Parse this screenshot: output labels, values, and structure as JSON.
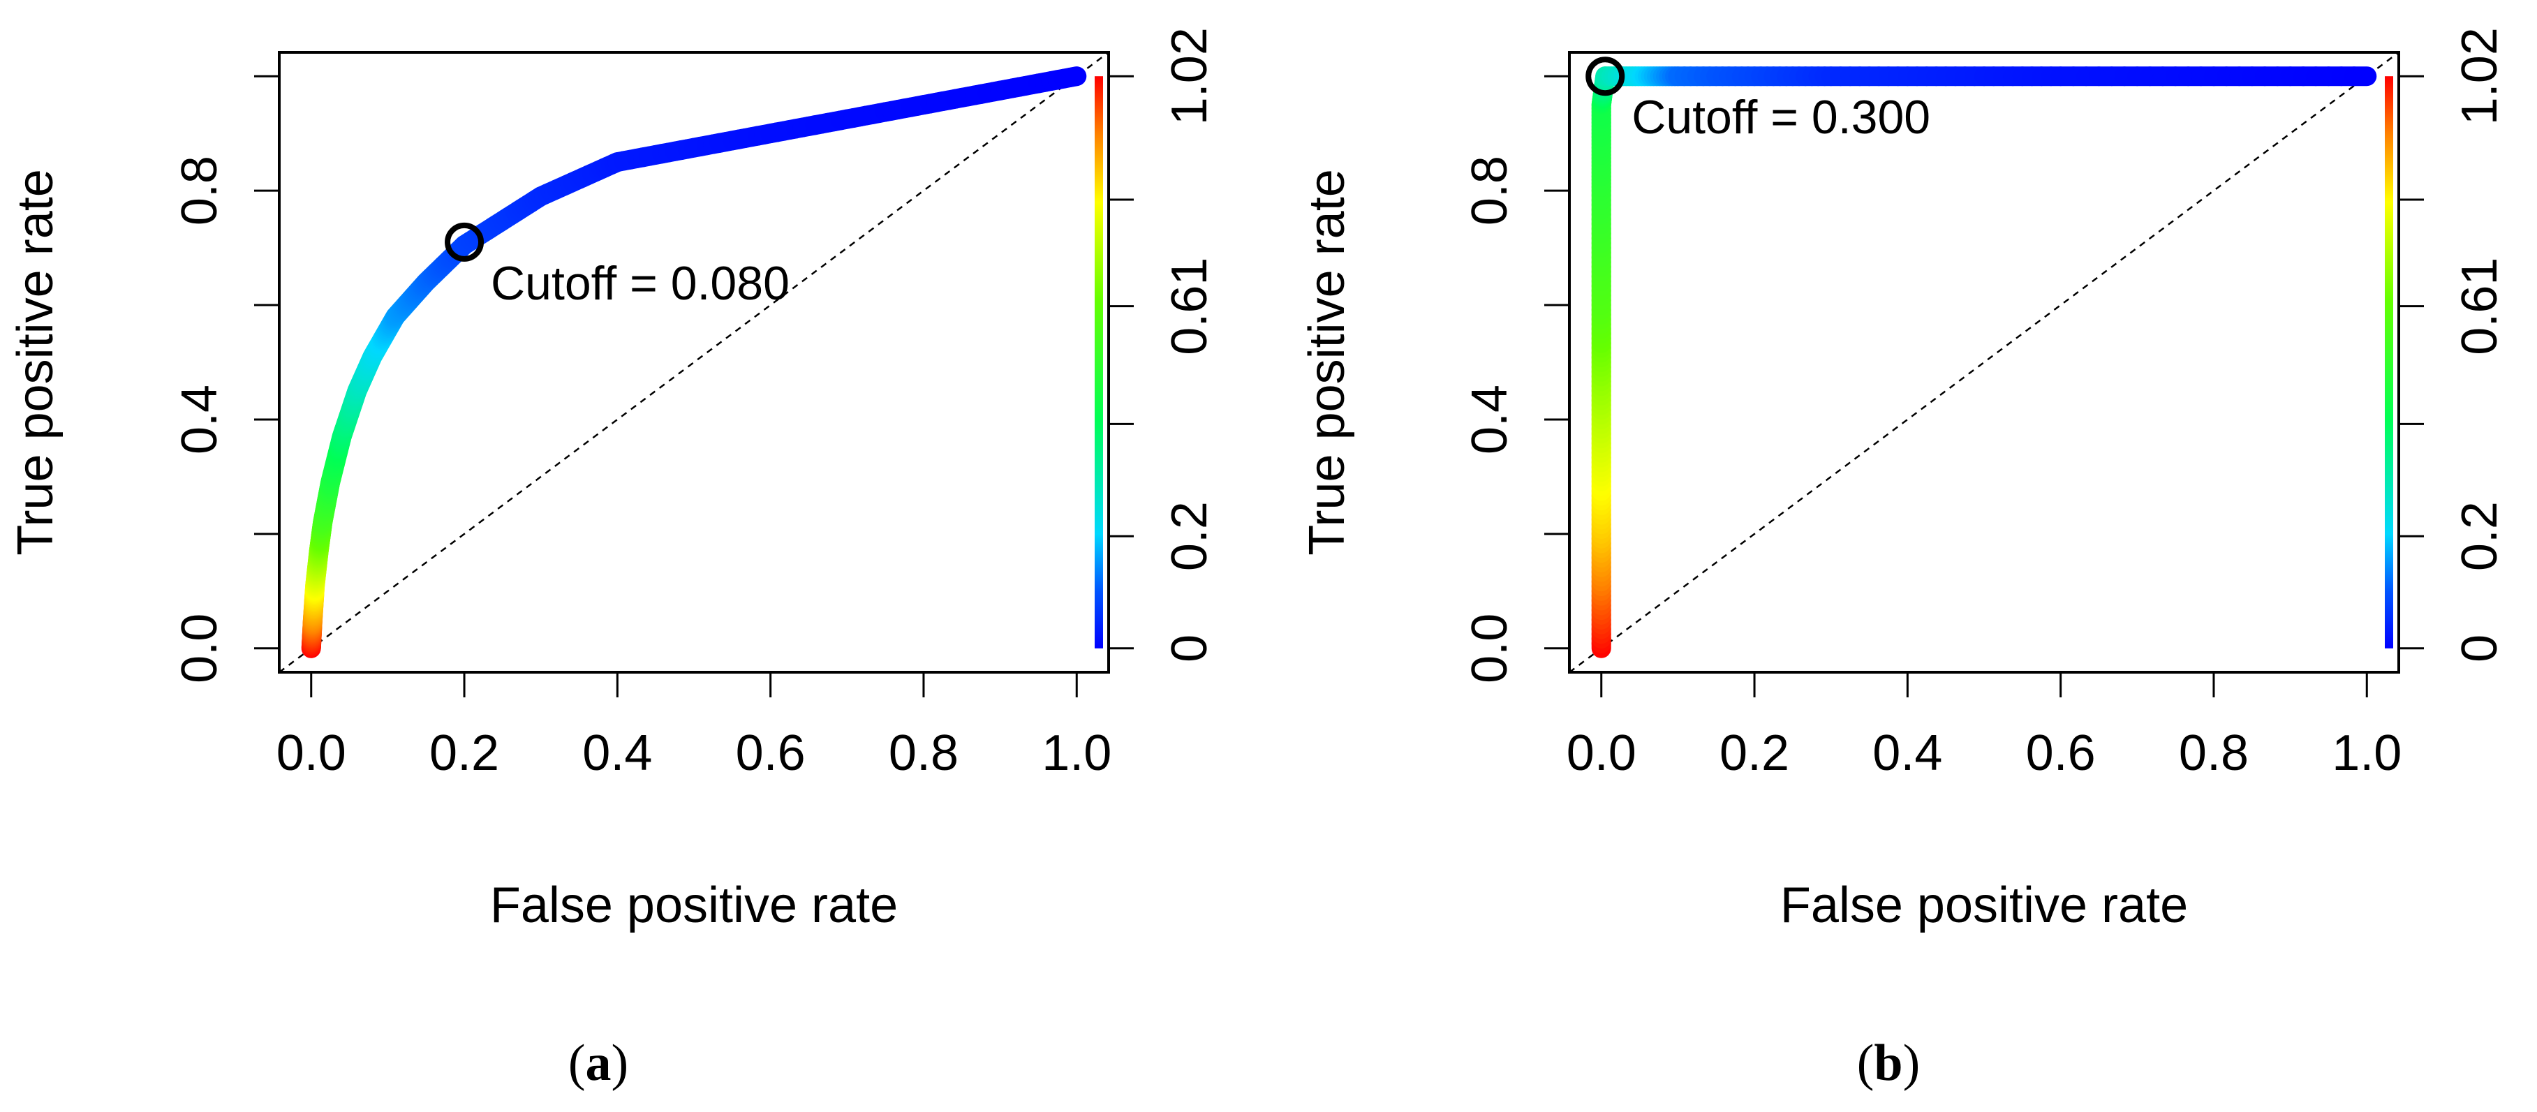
{
  "chart_data": [
    {
      "type": "line",
      "panel": "a",
      "caption_letter": "a",
      "caption_open": "(",
      "caption_close": ")",
      "xlabel": "False positive rate",
      "ylabel": "True positive rate",
      "xlim": [
        0,
        1
      ],
      "ylim": [
        0,
        1
      ],
      "x_ticks": [
        0,
        0.2,
        0.4,
        0.6,
        0.8,
        1.0
      ],
      "x_tick_labels": [
        "0.0",
        "0.2",
        "0.4",
        "0.6",
        "0.8",
        "1.0"
      ],
      "y_ticks": [
        0,
        0.2,
        0.4,
        0.6,
        0.8,
        1.0
      ],
      "y_tick_labels": [
        "0.0",
        "",
        "0.4",
        "",
        "0.8",
        ""
      ],
      "colorbar_ticks": [
        0,
        0.2,
        0.4,
        0.61,
        0.8,
        1.02
      ],
      "colorbar_tick_labels": [
        "0",
        "0.2",
        "",
        "0.61",
        "",
        "1.02"
      ],
      "colorbar_range": [
        0,
        1.02
      ],
      "diagonal": true,
      "roc_points": [
        {
          "fpr": 0.0,
          "tpr": 0.0,
          "cutoff": 1.02
        },
        {
          "fpr": 0.002,
          "tpr": 0.05,
          "cutoff": 0.9
        },
        {
          "fpr": 0.005,
          "tpr": 0.11,
          "cutoff": 0.78
        },
        {
          "fpr": 0.01,
          "tpr": 0.17,
          "cutoff": 0.66
        },
        {
          "fpr": 0.015,
          "tpr": 0.22,
          "cutoff": 0.56
        },
        {
          "fpr": 0.025,
          "tpr": 0.29,
          "cutoff": 0.47
        },
        {
          "fpr": 0.04,
          "tpr": 0.37,
          "cutoff": 0.38
        },
        {
          "fpr": 0.06,
          "tpr": 0.45,
          "cutoff": 0.29
        },
        {
          "fpr": 0.08,
          "tpr": 0.51,
          "cutoff": 0.23
        },
        {
          "fpr": 0.11,
          "tpr": 0.58,
          "cutoff": 0.16
        },
        {
          "fpr": 0.15,
          "tpr": 0.64,
          "cutoff": 0.12
        },
        {
          "fpr": 0.2,
          "tpr": 0.705,
          "cutoff": 0.08
        },
        {
          "fpr": 0.3,
          "tpr": 0.79,
          "cutoff": 0.05
        },
        {
          "fpr": 0.4,
          "tpr": 0.85,
          "cutoff": 0.03
        },
        {
          "fpr": 0.6,
          "tpr": 0.9,
          "cutoff": 0.015
        },
        {
          "fpr": 0.8,
          "tpr": 0.95,
          "cutoff": 0.007
        },
        {
          "fpr": 1.0,
          "tpr": 1.0,
          "cutoff": 0.0
        }
      ],
      "cutoff_marker": {
        "fpr": 0.2,
        "tpr": 0.71
      },
      "cutoff_label": "Cutoff = 0.080"
    },
    {
      "type": "line",
      "panel": "b",
      "caption_letter": "b",
      "caption_open": "(",
      "caption_close": ")",
      "xlabel": "False positive rate",
      "ylabel": "True positive rate",
      "xlim": [
        0,
        1
      ],
      "ylim": [
        0,
        1
      ],
      "x_ticks": [
        0,
        0.2,
        0.4,
        0.6,
        0.8,
        1.0
      ],
      "x_tick_labels": [
        "0.0",
        "0.2",
        "0.4",
        "0.6",
        "0.8",
        "1.0"
      ],
      "y_ticks": [
        0,
        0.2,
        0.4,
        0.6,
        0.8,
        1.0
      ],
      "y_tick_labels": [
        "0.0",
        "",
        "0.4",
        "",
        "0.8",
        ""
      ],
      "colorbar_ticks": [
        0,
        0.2,
        0.4,
        0.61,
        0.8,
        1.02
      ],
      "colorbar_tick_labels": [
        "0",
        "0.2",
        "",
        "0.61",
        "",
        "1.02"
      ],
      "colorbar_range": [
        0,
        1.02
      ],
      "diagonal": true,
      "roc_points": [
        {
          "fpr": 0.0,
          "tpr": 0.0,
          "cutoff": 1.02
        },
        {
          "fpr": 0.0,
          "tpr": 0.2,
          "cutoff": 0.85
        },
        {
          "fpr": 0.0,
          "tpr": 0.4,
          "cutoff": 0.72
        },
        {
          "fpr": 0.0,
          "tpr": 0.6,
          "cutoff": 0.58
        },
        {
          "fpr": 0.0,
          "tpr": 0.8,
          "cutoff": 0.5
        },
        {
          "fpr": 0.0,
          "tpr": 0.95,
          "cutoff": 0.44
        },
        {
          "fpr": 0.005,
          "tpr": 1.0,
          "cutoff": 0.3
        },
        {
          "fpr": 0.1,
          "tpr": 1.0,
          "cutoff": 0.12
        },
        {
          "fpr": 0.3,
          "tpr": 1.0,
          "cutoff": 0.05
        },
        {
          "fpr": 0.6,
          "tpr": 1.0,
          "cutoff": 0.02
        },
        {
          "fpr": 1.0,
          "tpr": 1.0,
          "cutoff": 0.0
        }
      ],
      "cutoff_marker": {
        "fpr": 0.005,
        "tpr": 1.0
      },
      "cutoff_label": "Cutoff = 0.300"
    }
  ]
}
